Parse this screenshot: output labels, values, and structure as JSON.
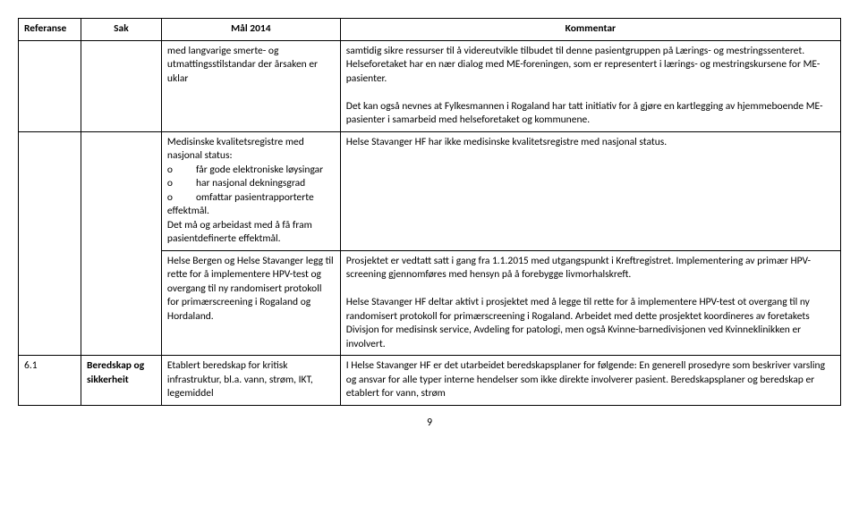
{
  "headers": {
    "referanse": "Referanse",
    "sak": "Sak",
    "mal": "Mål 2014",
    "kommentar": "Kommentar"
  },
  "row1": {
    "mal": "med langvarige smerte- og utmattingsstilstandar der årsaken er uklar",
    "kom_p1": "samtidig sikre ressurser til å videreutvikle tilbudet til denne pasientgruppen på Lærings- og mestringssenteret. Helseforetaket har en nær dialog med ME-foreningen, som er representert i lærings- og mestringskursene for ME-pasienter.",
    "kom_p2": "Det kan også nevnes at Fylkesmannen i Rogaland har tatt initiativ for å gjøre en kartlegging av hjemmeboende ME-pasienter i samarbeid med helseforetaket og kommunene."
  },
  "row2": {
    "mal_line1": "Medisinske kvalitetsregistre med nasjonal status:",
    "mal_o1": "o          får gode elektroniske løysingar",
    "mal_o2": "o          har nasjonal dekningsgrad",
    "mal_o3": "o          omfattar pasientrapporterte   effektmål.",
    "mal_line2": "Det må og arbeidast med å få fram pasientdefinerte effektmål.",
    "kom": "Helse Stavanger HF har ikke medisinske kvalitetsregistre med nasjonal status."
  },
  "row3": {
    "mal": "Helse Bergen og Helse Stavanger legg til rette for å implementere HPV-test og overgang til ny randomisert protokoll for primærscreening i Rogaland og Hordaland.",
    "kom_p1": "Prosjektet er vedtatt satt i gang fra 1.1.2015 med utgangspunkt i Kreftregistret. Implementering av primær HPV-screening gjennomføres med hensyn på å forebygge livmorhalskreft.",
    "kom_p2": "Helse Stavanger HF deltar aktivt i prosjektet med å legge til rette for å implementere HPV-test ot overgang til ny randomisert protokoll for primærscreening i Rogaland. Arbeidet med dette prosjektet koordineres av foretakets Divisjon for medisinsk service, Avdeling for patologi, men også Kvinne-barnedivisjonen ved Kvinneklinikken er involvert."
  },
  "row4": {
    "ref": "6.1",
    "sak": "Beredskap og sikkerheit",
    "mal": "Etablert beredskap for kritisk infrastruktur, bl.a. vann, strøm, IKT, legemiddel",
    "kom": "I Helse Stavanger HF er det utarbeidet beredskapsplaner for følgende: En generell prosedyre som beskriver varsling og ansvar for alle typer interne hendelser som ikke direkte involverer pasient. Beredskapsplaner og beredskap er etablert for vann, strøm"
  },
  "page_number": "9"
}
